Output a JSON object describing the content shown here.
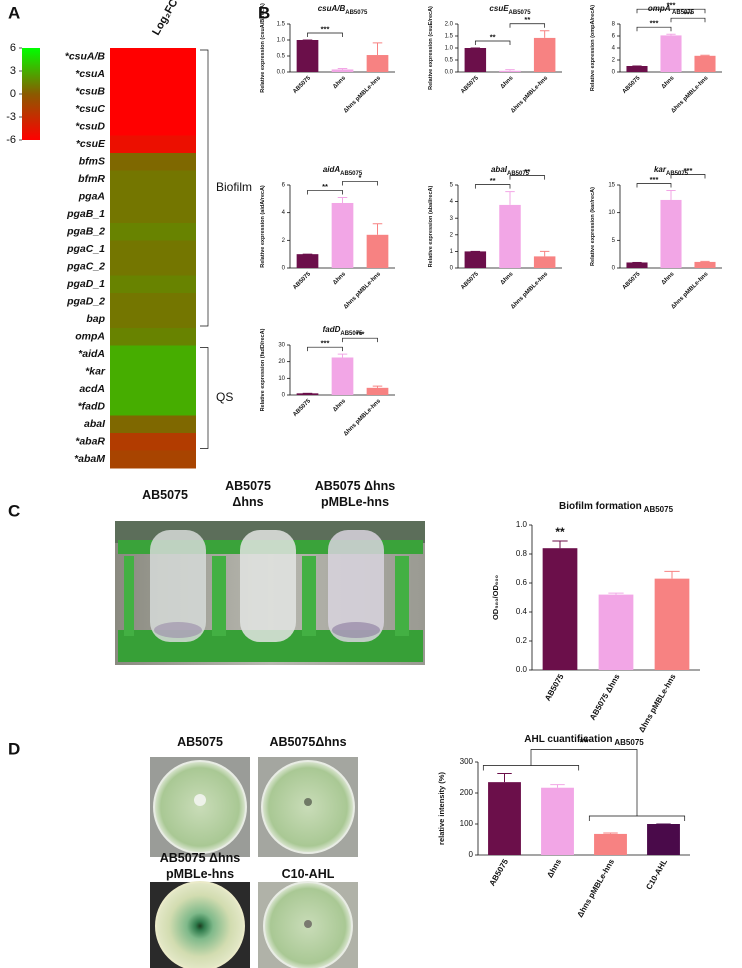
{
  "panels": [
    "A",
    "B",
    "C",
    "D"
  ],
  "photo_labels_c": [
    [
      "AB5075"
    ],
    [
      "AB5075",
      "Δhns"
    ],
    [
      "AB5075 Δhns",
      "pMBLe-hns"
    ]
  ],
  "photo_labels_d": [
    [
      "AB5075"
    ],
    [
      "AB5075Δhns"
    ],
    [
      "AB5075 Δhns",
      "pMBLe-hns"
    ],
    [
      "C10-AHL"
    ]
  ],
  "chart_data": [
    {
      "type": "heatmap",
      "column_label": "Log₂FC",
      "rows": [
        "*csuA/B",
        "*csuA",
        "*csuB",
        "*csuC",
        "*csuD",
        "*csuE",
        "bfmS",
        "bfmR",
        "pgaA",
        "pgaB_1",
        "pgaB_2",
        "pgaC_1",
        "pgaC_2",
        "pgaD_1",
        "pgaD_2",
        "bap",
        "ompA",
        "*aidA",
        "*kar",
        "acdA",
        "*fadD",
        "abaI",
        "*abaR",
        "*abaM"
      ],
      "values": [
        -6,
        -6,
        -6,
        -6,
        -6,
        -5,
        0.5,
        1,
        1,
        1,
        1.5,
        1,
        1,
        1.5,
        1,
        1,
        1.5,
        3,
        3,
        3,
        3,
        0.5,
        -2,
        -1.5
      ],
      "zlim": [
        -6,
        6
      ],
      "zticks": [
        6,
        3,
        0,
        -3,
        -6
      ],
      "colors": [
        "#ff0000",
        "#8b5a00",
        "#00ff00"
      ],
      "groups": [
        {
          "name": "Biofilm",
          "from": 0,
          "to": 16
        },
        {
          "name": "QS",
          "from": 17,
          "to": 23
        }
      ]
    },
    {
      "type": "bar",
      "title": "csuA/B",
      "title_sub": "AB5075",
      "ylabel": "Relative expression (csuA/B/recA)",
      "categories": [
        "AB5075",
        "Δhns",
        "Δhns pMBLe-hns"
      ],
      "colors": [
        "#6b0f4a",
        "#f2a6e6",
        "#f78282"
      ],
      "values": [
        1.0,
        0.08,
        0.53
      ],
      "errors": [
        0,
        0.03,
        0.38
      ],
      "ylim": [
        0,
        1.5
      ],
      "yticks": [
        {
          "value": 0,
          "label": "0.0"
        },
        0.5,
        {
          "value": 1,
          "label": "1.0"
        },
        1.5
      ],
      "annotations": [
        {
          "text": "***",
          "pair": [
            0,
            1
          ]
        }
      ]
    },
    {
      "type": "bar",
      "title": "csuE",
      "title_sub": "AB5075",
      "ylabel": "Relative expression (csuE/recA)",
      "categories": [
        "AB5075",
        "Δhns",
        "Δhns pMBLe-hns"
      ],
      "colors": [
        "#6b0f4a",
        "#f2a6e6",
        "#f78282"
      ],
      "values": [
        1.0,
        0.05,
        1.42
      ],
      "errors": [
        0,
        0.05,
        0.3
      ],
      "ylim": [
        0,
        2
      ],
      "yticks": [
        {
          "value": 0,
          "label": "0.0"
        },
        0.5,
        {
          "value": 1,
          "label": "1.0"
        },
        1.5,
        {
          "value": 2,
          "label": "2.0"
        }
      ],
      "annotations": [
        {
          "text": "**",
          "pair": [
            0,
            1
          ]
        },
        {
          "text": "**",
          "pair": [
            1,
            2
          ]
        }
      ]
    },
    {
      "type": "bar",
      "title": "ompA",
      "title_sub": " AB5075",
      "ylabel": "Relative expression (ompA/recA)",
      "categories": [
        "AB5075",
        "Δhns",
        "Δhns pMBLe-hns"
      ],
      "colors": [
        "#6b0f4a",
        "#f2a6e6",
        "#f78282"
      ],
      "values": [
        1.0,
        6.1,
        2.7
      ],
      "errors": [
        0,
        0.2,
        0.1
      ],
      "ylim": [
        0,
        8
      ],
      "yticks": [
        0,
        2,
        4,
        6,
        8
      ],
      "annotations": [
        {
          "text": "***",
          "pair": [
            0,
            1
          ]
        },
        {
          "text": "***",
          "pair": [
            1,
            2
          ]
        },
        {
          "text": "***",
          "pair": [
            0,
            2
          ]
        }
      ]
    },
    {
      "type": "bar",
      "title": "aidA",
      "title_sub": "AB5075",
      "ylabel": "Relative expression (aidA/recA)",
      "categories": [
        "AB5075",
        "Δhns",
        "Δhns pMBLe-hns"
      ],
      "colors": [
        "#6b0f4a",
        "#f2a6e6",
        "#f78282"
      ],
      "values": [
        1.0,
        4.7,
        2.4
      ],
      "errors": [
        0,
        0.4,
        0.8
      ],
      "ylim": [
        0,
        6
      ],
      "yticks": [
        0,
        2,
        4,
        6
      ],
      "annotations": [
        {
          "text": "**",
          "pair": [
            0,
            1
          ]
        },
        {
          "text": "*",
          "pair": [
            1,
            2
          ]
        }
      ]
    },
    {
      "type": "bar",
      "title": "abaI",
      "title_sub": "AB5075",
      "ylabel": "Relative expression (abaI/recA)",
      "categories": [
        "AB5075",
        "Δhns",
        "Δhns pMBLe-hns"
      ],
      "colors": [
        "#6b0f4a",
        "#f2a6e6",
        "#f78282"
      ],
      "values": [
        1.0,
        3.8,
        0.7
      ],
      "errors": [
        0,
        0.8,
        0.3
      ],
      "ylim": [
        0,
        5
      ],
      "yticks": [
        0,
        1,
        2,
        3,
        4,
        5
      ],
      "annotations": [
        {
          "text": "**",
          "pair": [
            0,
            1
          ]
        },
        {
          "text": "**",
          "pair": [
            1,
            2
          ]
        }
      ]
    },
    {
      "type": "bar",
      "title": "kar",
      "title_sub": "AB5075",
      "ylabel": "Relative expression (kar/recA)",
      "categories": [
        "AB5075",
        "Δhns",
        "Δhns pMBLe-hns"
      ],
      "colors": [
        "#6b0f4a",
        "#f2a6e6",
        "#f78282"
      ],
      "values": [
        1.0,
        12.3,
        1.1
      ],
      "errors": [
        0,
        1.7,
        0.1
      ],
      "ylim": [
        0,
        15
      ],
      "yticks": [
        0,
        5,
        10,
        15
      ],
      "annotations": [
        {
          "text": "***",
          "pair": [
            0,
            1
          ]
        },
        {
          "text": "***",
          "pair": [
            1,
            2
          ]
        }
      ]
    },
    {
      "type": "bar",
      "title": "fadD",
      "title_sub": "AB5075",
      "ylabel": "Relative expression (fadD/recA)",
      "categories": [
        "AB5075",
        "Δhns",
        "Δhns pMBLe-hns"
      ],
      "colors": [
        "#6b0f4a",
        "#f2a6e6",
        "#f78282"
      ],
      "values": [
        1.0,
        22.5,
        4.3
      ],
      "errors": [
        0,
        2,
        1
      ],
      "ylim": [
        0,
        30
      ],
      "yticks": [
        0,
        10,
        20,
        30
      ],
      "annotations": [
        {
          "text": "***",
          "pair": [
            0,
            1
          ]
        },
        {
          "text": "***",
          "pair": [
            1,
            2
          ]
        }
      ]
    },
    {
      "type": "bar",
      "title": "Biofilm formation",
      "title_sub": " AB5075",
      "ylabel": "OD₅₈₀/OD₆₀₀",
      "categories": [
        "AB5075",
        "AB5075 Δhns",
        "Δhns pMBLe-hns"
      ],
      "colors": [
        "#6b0f4a",
        "#f2a6e6",
        "#f78282"
      ],
      "values": [
        0.84,
        0.52,
        0.63
      ],
      "errors": [
        0.05,
        0.01,
        0.05
      ],
      "ylim": [
        0,
        1
      ],
      "yticks": [
        {
          "value": 0,
          "label": "0.0"
        },
        0.2,
        0.4,
        0.6,
        0.8,
        {
          "value": 1,
          "label": "1.0"
        }
      ],
      "annotations": [
        {
          "text": "**",
          "pair": [
            0
          ]
        }
      ]
    },
    {
      "type": "bar",
      "title": "AHL cuantification",
      "title_sub": " AB5075",
      "ylabel": "relative intensity (%)",
      "categories": [
        "AB5075",
        "Δhns",
        "Δhns pMBLe-hns",
        "C10-AHL"
      ],
      "colors": [
        "#6b0f4a",
        "#f2a6e6",
        "#f78282",
        "#4a0a4a"
      ],
      "values": [
        235,
        217,
        68,
        100
      ],
      "errors": [
        28,
        10,
        3,
        0
      ],
      "ylim": [
        0,
        300
      ],
      "yticks": [
        0,
        100,
        200,
        300
      ],
      "annotations": [
        {
          "text": "**",
          "groups": [
            [
              0,
              1
            ],
            [
              2,
              3
            ]
          ]
        }
      ]
    }
  ]
}
